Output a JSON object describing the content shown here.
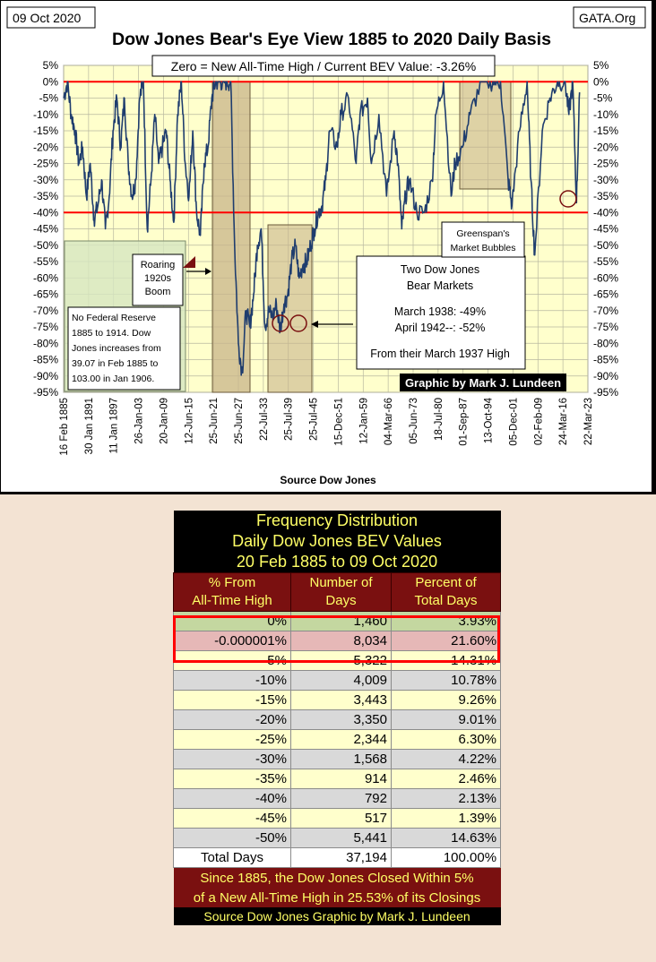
{
  "header": {
    "date_stamp": "09 Oct 2020",
    "source_site": "GATA.Org",
    "title": "Dow Jones Bear's Eye View 1885 to 2020 Daily Basis",
    "banner": "Zero = New All-Time High / Current BEV Value: -3.26%",
    "x_axis_source": "Source Dow Jones",
    "credit": "Graphic by Mark J. Lundeen"
  },
  "annotations": {
    "roaring": [
      "Roaring",
      "1920s",
      "Boom"
    ],
    "fed": [
      "No Federal Reserve",
      "1885 to 1914.  Dow",
      "Jones increases from",
      "39.07  in Feb 1885  to",
      "103.00  in Jan 1906."
    ],
    "bears": [
      "Two Dow Jones",
      "Bear Markets",
      "March 1938: -49%",
      "April 1942--: -52%",
      "From their March 1937 High"
    ],
    "greenspan": [
      "Greenspan's",
      "Market Bubbles"
    ]
  },
  "chart_data": {
    "type": "line",
    "title": "Dow Jones Bear's Eye View 1885 to 2020 Daily Basis",
    "xlabel": "Source Dow Jones",
    "ylabel": "",
    "ylim": [
      -95,
      5
    ],
    "y_ticks": [
      "5%",
      "0%",
      "-5%",
      "-10%",
      "-15%",
      "-20%",
      "-25%",
      "-30%",
      "-35%",
      "-40%",
      "-45%",
      "-50%",
      "-55%",
      "-60%",
      "-65%",
      "-70%",
      "-75%",
      "-80%",
      "-85%",
      "-90%",
      "-95%"
    ],
    "x_ticks": [
      "16 Feb 1885",
      "30 Jan 1891",
      "11 Jan 1897",
      "26-Jan-03",
      "20-Jan-09",
      "12-Jun-15",
      "25-Jun-21",
      "25-Jun-27",
      "22-Jul-33",
      "25-Jul-39",
      "25-Jul-45",
      "15-Dec-51",
      "12-Jan-59",
      "04-Mar-66",
      "05-Jun-73",
      "18-Jul-80",
      "01-Sep-87",
      "13-Oct-94",
      "05-Dec-01",
      "02-Feb-09",
      "24-Mar-16",
      "22-Mar-23"
    ],
    "reference_lines": [
      0,
      -40
    ],
    "grid": true,
    "series": [
      {
        "x": [
          1885,
          1886,
          1887,
          1888,
          1889,
          1890,
          1891,
          1892,
          1893,
          1894,
          1895,
          1896,
          1897,
          1898,
          1899,
          1900,
          1901,
          1902,
          1903,
          1904,
          1905,
          1906,
          1907,
          1908,
          1909,
          1910,
          1911,
          1912,
          1913,
          1914,
          1915,
          1916,
          1917,
          1918,
          1919,
          1920,
          1921,
          1922,
          1923,
          1924,
          1925,
          1926,
          1927,
          1928,
          1929,
          1930,
          1931,
          1932,
          1933,
          1934,
          1935,
          1936,
          1937,
          1938,
          1939,
          1940,
          1941,
          1942,
          1943,
          1944,
          1945,
          1946,
          1947,
          1948,
          1949,
          1950,
          1951,
          1952,
          1953,
          1954,
          1955,
          1957,
          1958,
          1960,
          1962,
          1963,
          1965,
          1966,
          1968,
          1970,
          1972,
          1973,
          1974,
          1975,
          1976,
          1978,
          1980,
          1982,
          1983,
          1985,
          1987,
          1988,
          1990,
          1992,
          1995,
          1998,
          2000,
          2002,
          2003,
          2005,
          2007,
          2008,
          2009,
          2011,
          2013,
          2015,
          2017,
          2018,
          2019,
          2020,
          2020.8
        ],
        "values": [
          -5,
          0,
          -10,
          -15,
          -25,
          -20,
          -35,
          -25,
          -42,
          -38,
          -30,
          -45,
          -35,
          -15,
          -5,
          -20,
          -5,
          -25,
          -35,
          -30,
          -5,
          0,
          -45,
          -30,
          -10,
          -25,
          -20,
          -15,
          -30,
          -43,
          -10,
          0,
          -25,
          -35,
          -15,
          -40,
          -47,
          -25,
          -20,
          -5,
          0,
          0,
          0,
          0,
          0,
          -50,
          -80,
          -89,
          -70,
          -75,
          -65,
          -50,
          -45,
          -75,
          -70,
          -72,
          -68,
          -76,
          -68,
          -65,
          -55,
          -50,
          -60,
          -56,
          -55,
          -50,
          -45,
          -40,
          -38,
          -30,
          -15,
          -20,
          -10,
          -5,
          -25,
          -10,
          -5,
          -25,
          -10,
          -35,
          -15,
          -25,
          -45,
          -35,
          -30,
          -40,
          -40,
          -30,
          -10,
          0,
          -35,
          -25,
          -20,
          -10,
          0,
          0,
          0,
          -30,
          -38,
          -15,
          0,
          -30,
          -53,
          -15,
          -5,
          0,
          0,
          -10,
          0,
          -37,
          -3.26
        ]
      }
    ]
  },
  "table": {
    "title": [
      "Frequency Distribution",
      "Daily Dow Jones BEV Values",
      "20 Feb 1885 to 09 Oct 2020"
    ],
    "columns": [
      [
        "% From",
        "All-Time High"
      ],
      [
        "Number of",
        "Days"
      ],
      [
        "Percent of",
        "Total Days"
      ]
    ],
    "rows": [
      {
        "bev": "0%",
        "days": "1,460",
        "pct": "3.93%"
      },
      {
        "bev": "-0.000001%",
        "days": "8,034",
        "pct": "21.60%"
      },
      {
        "bev": "-5%",
        "days": "5,322",
        "pct": "14.31%"
      },
      {
        "bev": "-10%",
        "days": "4,009",
        "pct": "10.78%"
      },
      {
        "bev": "-15%",
        "days": "3,443",
        "pct": "9.26%"
      },
      {
        "bev": "-20%",
        "days": "3,350",
        "pct": "9.01%"
      },
      {
        "bev": "-25%",
        "days": "2,344",
        "pct": "6.30%"
      },
      {
        "bev": "-30%",
        "days": "1,568",
        "pct": "4.22%"
      },
      {
        "bev": "-35%",
        "days": "914",
        "pct": "2.46%"
      },
      {
        "bev": "-40%",
        "days": "792",
        "pct": "2.13%"
      },
      {
        "bev": "-45%",
        "days": "517",
        "pct": "1.39%"
      },
      {
        "bev": "-50%",
        "days": "5,441",
        "pct": "14.63%"
      }
    ],
    "total": {
      "label": "Total Days",
      "days": "37,194",
      "pct": "100.00%"
    },
    "notes": [
      "Since 1885, the Dow Jones Closed Within 5%",
      "of a New All-Time High in 25.53% of its Closings"
    ],
    "source": "Source Dow Jones   Graphic by Mark J. Lundeen"
  },
  "colors": {
    "plot_bg": "#ffffcc",
    "line": "#1f3d6e",
    "ref_line": "#ff0000",
    "shade_tan": "#c8b48a",
    "shade_green": "#d6e6c0",
    "table_header": "#7a1010",
    "table_header_text": "#ffff66"
  }
}
